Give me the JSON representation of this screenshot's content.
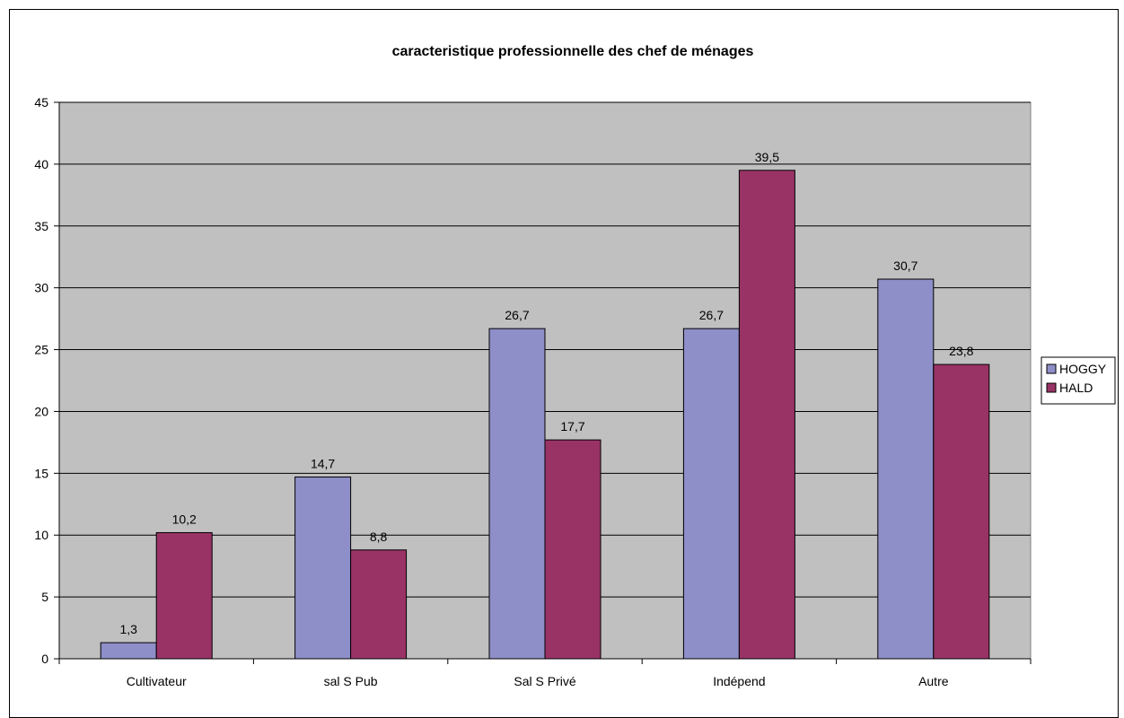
{
  "chart_data": {
    "type": "bar",
    "title": "caracteristique professionnelle des chef de ménages",
    "categories": [
      "Cultivateur",
      "sal S Pub",
      "Sal S Privé",
      "Indépend",
      "Autre"
    ],
    "series": [
      {
        "name": "HOGGY",
        "values": [
          1.3,
          14.7,
          26.7,
          26.7,
          30.7
        ],
        "labels": [
          "1,3",
          "14,7",
          "26,7",
          "26,7",
          "30,7"
        ],
        "color": "#8e8ec8"
      },
      {
        "name": "HALD",
        "values": [
          10.2,
          8.8,
          17.7,
          39.5,
          23.8
        ],
        "labels": [
          "10,2",
          "8,8",
          "17,7",
          "39,5",
          "23,8"
        ],
        "color": "#993366"
      }
    ],
    "ylim": [
      0,
      45
    ],
    "yticks": [
      0,
      5,
      10,
      15,
      20,
      25,
      30,
      35,
      40,
      45
    ],
    "grid": true,
    "plot_background": "#c0c0c0",
    "legend": "right"
  }
}
